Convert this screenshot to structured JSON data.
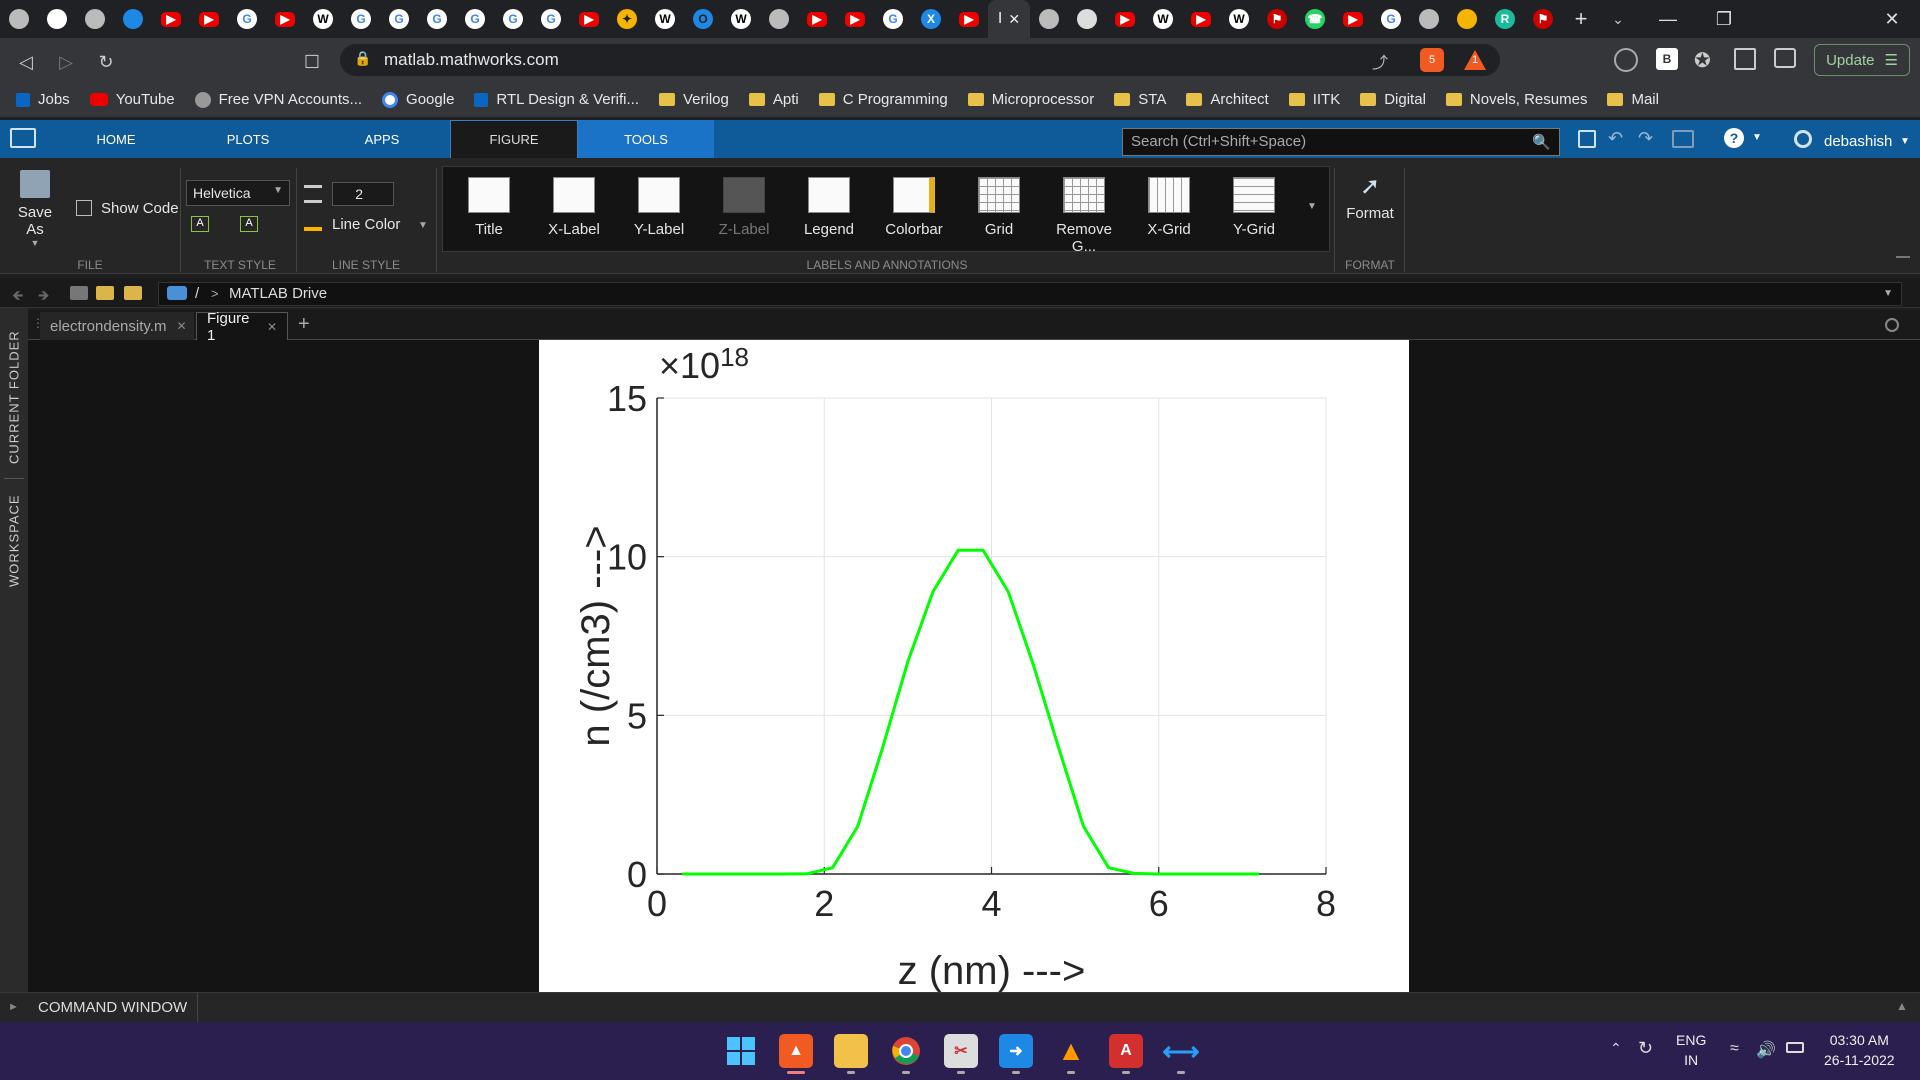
{
  "browser": {
    "active_tab_letter": "I",
    "url": "matlab.mathworks.com",
    "update_label": "Update",
    "shield_count": "5",
    "alert_count": "1",
    "profile_letter": "B"
  },
  "bookmarks": [
    {
      "label": "Jobs",
      "icon": "linkedin-icon"
    },
    {
      "label": "YouTube",
      "icon": "youtube-icon"
    },
    {
      "label": "Free VPN Accounts...",
      "icon": "globe-icon"
    },
    {
      "label": "Google",
      "icon": "google-icon"
    },
    {
      "label": "RTL Design & Verifi...",
      "icon": "linkedin-icon"
    },
    {
      "label": "Verilog",
      "icon": "folder-icon"
    },
    {
      "label": "Apti",
      "icon": "folder-icon"
    },
    {
      "label": "C Programming",
      "icon": "folder-icon"
    },
    {
      "label": "Microprocessor",
      "icon": "folder-icon"
    },
    {
      "label": "STA",
      "icon": "folder-icon"
    },
    {
      "label": "Architect",
      "icon": "folder-icon"
    },
    {
      "label": "IITK",
      "icon": "folder-icon"
    },
    {
      "label": "Digital",
      "icon": "folder-icon"
    },
    {
      "label": "Novels, Resumes",
      "icon": "folder-icon"
    },
    {
      "label": "Mail",
      "icon": "folder-icon"
    }
  ],
  "matlab": {
    "tabs": [
      "HOME",
      "PLOTS",
      "APPS",
      "FIGURE",
      "TOOLS"
    ],
    "search_placeholder": "Search (Ctrl+Shift+Space)",
    "user": "debashish",
    "toolstrip": {
      "save_as": "Save As",
      "show_code": "Show Code",
      "font": "Helvetica",
      "line_width": "2",
      "line_color": "Line Color",
      "sections": [
        "FILE",
        "TEXT STYLE",
        "LINE STYLE",
        "LABELS AND ANNOTATIONS",
        "FORMAT"
      ],
      "gallery": [
        "Title",
        "X-Label",
        "Y-Label",
        "Z-Label",
        "Legend",
        "Colorbar",
        "Grid",
        "Remove G...",
        "X-Grid",
        "Y-Grid"
      ],
      "format": "Format"
    },
    "path": {
      "root": "/",
      "sep": ">",
      "folder": "MATLAB Drive"
    },
    "side_panels": [
      "CURRENT FOLDER",
      "WORKSPACE"
    ],
    "doc_tabs": [
      "electrondensity.m",
      "Figure 1"
    ],
    "command_window": "COMMAND WINDOW"
  },
  "chart_data": {
    "type": "line",
    "xlabel": "z (nm) --->",
    "ylabel": "n (/cm3) --->",
    "y_exponent_prefix": "×10",
    "y_exponent": "18",
    "xlim": [
      0,
      8
    ],
    "ylim": [
      0,
      15
    ],
    "xticks": [
      "0",
      "2",
      "4",
      "6",
      "8"
    ],
    "yticks": [
      "0",
      "5",
      "10",
      "15"
    ],
    "grid": true,
    "series": [
      {
        "color": "#00ff00",
        "x": [
          0.3,
          0.6,
          0.9,
          1.2,
          1.5,
          1.8,
          2.1,
          2.4,
          2.7,
          3.0,
          3.3,
          3.6,
          3.9,
          4.2,
          4.5,
          4.8,
          5.1,
          5.4,
          5.7,
          6.0,
          6.3,
          6.6,
          6.9,
          7.2
        ],
        "y": [
          0,
          0,
          0,
          0,
          0,
          0.01,
          0.2,
          1.5,
          4.0,
          6.7,
          8.9,
          10.2,
          10.2,
          8.9,
          6.6,
          4.0,
          1.5,
          0.2,
          0.02,
          0,
          0,
          0,
          0,
          0
        ]
      }
    ]
  },
  "taskbar": {
    "lang": "ENG",
    "region": "IN",
    "time": "03:30 AM",
    "date": "26-11-2022"
  }
}
